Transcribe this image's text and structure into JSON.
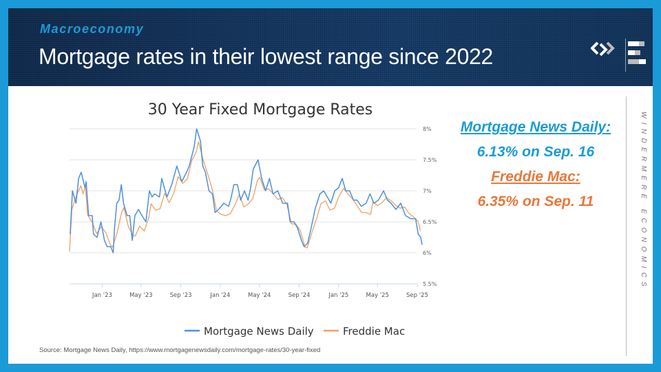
{
  "header": {
    "section": "Macroeconomy",
    "title": "Mortgage rates in their lowest range since 2022",
    "vertical_brand": "WINDERMERE ECONOMICS"
  },
  "callouts": {
    "mnd_label": "Mortgage News Daily:",
    "mnd_value": "6.13% on Sep. 16",
    "fm_label": "Freddie Mac:",
    "fm_value": "6.35% on Sep. 11"
  },
  "source": "Source: Mortgage News Daily, https://www.mortgagenewsdaily.com/mortgage-rates/30-year-fixed",
  "colors": {
    "accent": "#1a9bd7",
    "mnd": "#4a90e2",
    "freddie": "#f0a060",
    "callout_orange": "#e8783a"
  },
  "chart_data": {
    "type": "line",
    "title": "30 Year Fixed Mortgage Rates",
    "xlabel": "",
    "ylabel": "",
    "ylim": [
      5.5,
      8
    ],
    "xlim": [
      "2022-09-22",
      "2025-09-16"
    ],
    "y_ticks": [
      "5.5%",
      "6%",
      "6.5%",
      "7%",
      "7.5%",
      "8%"
    ],
    "y_tick_values": [
      5.5,
      6,
      6.5,
      7,
      7.5,
      8
    ],
    "x_ticks": [
      {
        "label": "Jan '23",
        "date": "2023-01-01"
      },
      {
        "label": "May '23",
        "date": "2023-05-01"
      },
      {
        "label": "Sep '23",
        "date": "2023-09-01"
      },
      {
        "label": "Jan '24",
        "date": "2024-01-01"
      },
      {
        "label": "May '24",
        "date": "2024-05-01"
      },
      {
        "label": "Sep '24",
        "date": "2024-09-01"
      },
      {
        "label": "Jan '25",
        "date": "2025-01-01"
      },
      {
        "label": "May '25",
        "date": "2025-05-01"
      },
      {
        "label": "Sep '25",
        "date": "2025-09-01"
      }
    ],
    "grid": true,
    "legend": "bottom",
    "series": [
      {
        "name": "Mortgage News Daily",
        "color": "#4a90e2",
        "points": [
          [
            "2022-09-24",
            6.3
          ],
          [
            "2022-10-01",
            7.0
          ],
          [
            "2022-10-12",
            6.8
          ],
          [
            "2022-10-20",
            7.2
          ],
          [
            "2022-10-28",
            7.3
          ],
          [
            "2022-11-09",
            7.05
          ],
          [
            "2022-11-12",
            7.15
          ],
          [
            "2022-11-20",
            6.6
          ],
          [
            "2022-12-01",
            6.6
          ],
          [
            "2022-12-05",
            6.3
          ],
          [
            "2022-12-16",
            6.25
          ],
          [
            "2022-12-28",
            6.5
          ],
          [
            "2023-01-08",
            6.2
          ],
          [
            "2023-01-16",
            6.1
          ],
          [
            "2023-01-27",
            6.1
          ],
          [
            "2023-02-04",
            6.0
          ],
          [
            "2023-02-08",
            6.4
          ],
          [
            "2023-02-15",
            6.8
          ],
          [
            "2023-02-22",
            6.85
          ],
          [
            "2023-03-01",
            7.1
          ],
          [
            "2023-03-08",
            6.8
          ],
          [
            "2023-03-19",
            6.6
          ],
          [
            "2023-03-27",
            6.6
          ],
          [
            "2023-04-04",
            6.2
          ],
          [
            "2023-04-12",
            6.6
          ],
          [
            "2023-04-23",
            6.7
          ],
          [
            "2023-05-04",
            6.6
          ],
          [
            "2023-05-16",
            6.5
          ],
          [
            "2023-05-27",
            7.0
          ],
          [
            "2023-06-04",
            6.9
          ],
          [
            "2023-06-12",
            6.95
          ],
          [
            "2023-06-27",
            6.9
          ],
          [
            "2023-07-04",
            7.2
          ],
          [
            "2023-07-20",
            6.9
          ],
          [
            "2023-08-04",
            7.1
          ],
          [
            "2023-08-20",
            7.4
          ],
          [
            "2023-09-04",
            7.15
          ],
          [
            "2023-09-19",
            7.3
          ],
          [
            "2023-09-27",
            7.4
          ],
          [
            "2023-10-12",
            7.7
          ],
          [
            "2023-10-20",
            8.0
          ],
          [
            "2023-11-01",
            7.8
          ],
          [
            "2023-11-08",
            7.4
          ],
          [
            "2023-11-16",
            7.3
          ],
          [
            "2023-11-27",
            7.0
          ],
          [
            "2023-12-08",
            6.95
          ],
          [
            "2023-12-16",
            6.65
          ],
          [
            "2023-12-27",
            6.7
          ],
          [
            "2024-01-12",
            6.8
          ],
          [
            "2024-01-27",
            6.75
          ],
          [
            "2024-02-04",
            6.9
          ],
          [
            "2024-02-12",
            7.1
          ],
          [
            "2024-02-23",
            7.1
          ],
          [
            "2024-03-04",
            6.85
          ],
          [
            "2024-03-16",
            7.0
          ],
          [
            "2024-03-27",
            6.85
          ],
          [
            "2024-04-04",
            7.05
          ],
          [
            "2024-04-12",
            7.35
          ],
          [
            "2024-04-27",
            7.5
          ],
          [
            "2024-05-08",
            7.2
          ],
          [
            "2024-05-20",
            7.0
          ],
          [
            "2024-06-01",
            7.2
          ],
          [
            "2024-06-12",
            6.95
          ],
          [
            "2024-06-27",
            7.0
          ],
          [
            "2024-07-12",
            6.8
          ],
          [
            "2024-07-27",
            6.8
          ],
          [
            "2024-08-04",
            6.5
          ],
          [
            "2024-08-16",
            6.5
          ],
          [
            "2024-08-27",
            6.4
          ],
          [
            "2024-09-08",
            6.2
          ],
          [
            "2024-09-16",
            6.1
          ],
          [
            "2024-09-27",
            6.15
          ],
          [
            "2024-10-08",
            6.4
          ],
          [
            "2024-10-20",
            6.7
          ],
          [
            "2024-11-04",
            6.95
          ],
          [
            "2024-11-16",
            7.0
          ],
          [
            "2024-11-27",
            6.9
          ],
          [
            "2024-12-08",
            6.8
          ],
          [
            "2024-12-20",
            7.0
          ],
          [
            "2025-01-01",
            7.05
          ],
          [
            "2025-01-12",
            7.2
          ],
          [
            "2025-01-23",
            7.0
          ],
          [
            "2025-02-04",
            7.0
          ],
          [
            "2025-02-16",
            6.85
          ],
          [
            "2025-02-27",
            6.85
          ],
          [
            "2025-03-12",
            6.75
          ],
          [
            "2025-03-27",
            6.8
          ],
          [
            "2025-04-08",
            6.95
          ],
          [
            "2025-04-20",
            6.8
          ],
          [
            "2025-05-04",
            6.85
          ],
          [
            "2025-05-20",
            7.0
          ],
          [
            "2025-06-01",
            6.85
          ],
          [
            "2025-06-12",
            6.8
          ],
          [
            "2025-06-27",
            6.7
          ],
          [
            "2025-07-12",
            6.8
          ],
          [
            "2025-07-27",
            6.6
          ],
          [
            "2025-08-12",
            6.55
          ],
          [
            "2025-08-27",
            6.55
          ],
          [
            "2025-09-04",
            6.3
          ],
          [
            "2025-09-12",
            6.25
          ],
          [
            "2025-09-16",
            6.13
          ]
        ]
      },
      {
        "name": "Freddie Mac",
        "color": "#f0a060",
        "points": [
          [
            "2022-09-22",
            6.02
          ],
          [
            "2022-09-29",
            6.7
          ],
          [
            "2022-10-13",
            6.92
          ],
          [
            "2022-10-27",
            7.08
          ],
          [
            "2022-11-03",
            6.95
          ],
          [
            "2022-11-10",
            7.08
          ],
          [
            "2022-11-17",
            6.61
          ],
          [
            "2022-12-01",
            6.49
          ],
          [
            "2022-12-15",
            6.31
          ],
          [
            "2022-12-29",
            6.42
          ],
          [
            "2023-01-12",
            6.33
          ],
          [
            "2023-01-26",
            6.13
          ],
          [
            "2023-02-02",
            6.09
          ],
          [
            "2023-02-16",
            6.32
          ],
          [
            "2023-03-02",
            6.65
          ],
          [
            "2023-03-09",
            6.73
          ],
          [
            "2023-03-23",
            6.42
          ],
          [
            "2023-04-06",
            6.28
          ],
          [
            "2023-04-13",
            6.27
          ],
          [
            "2023-04-27",
            6.43
          ],
          [
            "2023-05-11",
            6.35
          ],
          [
            "2023-05-25",
            6.57
          ],
          [
            "2023-06-01",
            6.79
          ],
          [
            "2023-06-15",
            6.69
          ],
          [
            "2023-06-29",
            6.71
          ],
          [
            "2023-07-13",
            6.96
          ],
          [
            "2023-07-27",
            6.81
          ],
          [
            "2023-08-10",
            6.96
          ],
          [
            "2023-08-24",
            7.23
          ],
          [
            "2023-09-07",
            7.12
          ],
          [
            "2023-09-21",
            7.19
          ],
          [
            "2023-10-05",
            7.49
          ],
          [
            "2023-10-19",
            7.63
          ],
          [
            "2023-10-26",
            7.79
          ],
          [
            "2023-11-09",
            7.5
          ],
          [
            "2023-11-22",
            7.29
          ],
          [
            "2023-12-07",
            7.03
          ],
          [
            "2023-12-21",
            6.67
          ],
          [
            "2024-01-04",
            6.62
          ],
          [
            "2024-01-18",
            6.6
          ],
          [
            "2024-02-01",
            6.63
          ],
          [
            "2024-02-15",
            6.77
          ],
          [
            "2024-02-29",
            6.94
          ],
          [
            "2024-03-14",
            6.74
          ],
          [
            "2024-03-28",
            6.79
          ],
          [
            "2024-04-11",
            6.88
          ],
          [
            "2024-04-25",
            7.17
          ],
          [
            "2024-05-02",
            7.22
          ],
          [
            "2024-05-16",
            7.02
          ],
          [
            "2024-05-30",
            7.03
          ],
          [
            "2024-06-13",
            6.95
          ],
          [
            "2024-06-27",
            6.86
          ],
          [
            "2024-07-11",
            6.89
          ],
          [
            "2024-07-25",
            6.78
          ],
          [
            "2024-08-08",
            6.47
          ],
          [
            "2024-08-22",
            6.46
          ],
          [
            "2024-09-05",
            6.35
          ],
          [
            "2024-09-19",
            6.09
          ],
          [
            "2024-09-26",
            6.08
          ],
          [
            "2024-10-10",
            6.32
          ],
          [
            "2024-10-24",
            6.54
          ],
          [
            "2024-11-07",
            6.79
          ],
          [
            "2024-11-21",
            6.84
          ],
          [
            "2024-12-05",
            6.69
          ],
          [
            "2024-12-19",
            6.72
          ],
          [
            "2025-01-02",
            6.91
          ],
          [
            "2025-01-16",
            7.04
          ],
          [
            "2025-01-30",
            6.95
          ],
          [
            "2025-02-13",
            6.87
          ],
          [
            "2025-02-27",
            6.76
          ],
          [
            "2025-03-13",
            6.65
          ],
          [
            "2025-03-27",
            6.65
          ],
          [
            "2025-04-10",
            6.62
          ],
          [
            "2025-04-17",
            6.83
          ],
          [
            "2025-05-01",
            6.76
          ],
          [
            "2025-05-15",
            6.81
          ],
          [
            "2025-05-29",
            6.89
          ],
          [
            "2025-06-12",
            6.84
          ],
          [
            "2025-06-26",
            6.77
          ],
          [
            "2025-07-10",
            6.72
          ],
          [
            "2025-07-24",
            6.74
          ],
          [
            "2025-08-07",
            6.63
          ],
          [
            "2025-08-21",
            6.58
          ],
          [
            "2025-09-04",
            6.5
          ],
          [
            "2025-09-11",
            6.35
          ]
        ]
      }
    ]
  }
}
